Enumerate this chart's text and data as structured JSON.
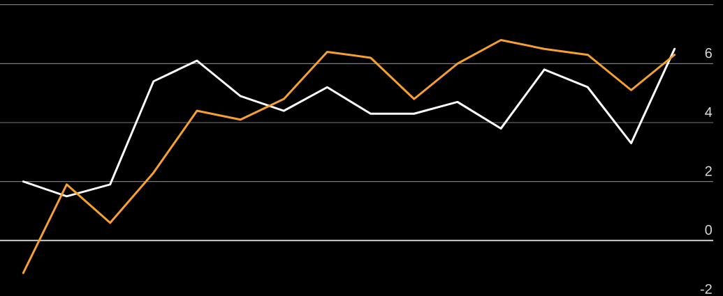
{
  "chart_data": {
    "type": "line",
    "categories": [
      null,
      null,
      null,
      null,
      null,
      null,
      null,
      null,
      null,
      null,
      null,
      null,
      null,
      null,
      null,
      null
    ],
    "series": [
      {
        "color": "#ffffff",
        "values": [
          2.0,
          1.5,
          1.9,
          5.4,
          6.1,
          4.9,
          4.4,
          5.2,
          4.3,
          4.3,
          4.7,
          3.8,
          5.8,
          5.2,
          3.3,
          6.5
        ]
      },
      {
        "color": "#f5a030",
        "values": [
          -1.1,
          1.9,
          0.6,
          2.3,
          4.4,
          4.1,
          4.8,
          6.4,
          6.2,
          4.8,
          6.0,
          6.8,
          6.5,
          6.3,
          5.1,
          6.3
        ]
      }
    ],
    "ylim": [
      -2,
      8
    ],
    "yticks": [
      -2,
      0,
      2,
      4,
      6,
      {
        "value": 8,
        "label": null
      }
    ],
    "grid": "y",
    "tick_labels": "y",
    "marker": "none",
    "line_style": "solid",
    "ref_lines": [
      {
        "axis": "y",
        "value": 0,
        "color": "#e6e6e6"
      }
    ]
  }
}
